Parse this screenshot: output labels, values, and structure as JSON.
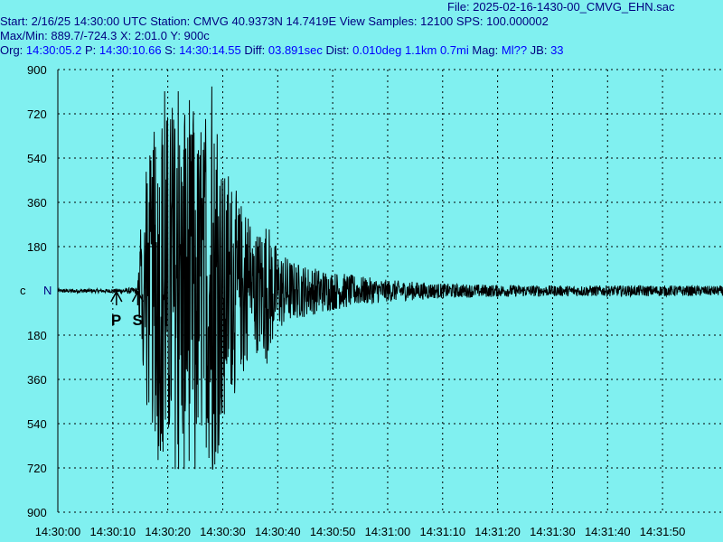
{
  "header": {
    "file": "File: 2025-02-16-1430-00_CMVG_EHN.sac",
    "line1": "Start: 2/16/25 14:30:00 UTC Station: CMVG 40.9373N 14.7419E View Samples: 12100  SPS: 100.000002",
    "line2": "Max/Min: 889.7/-724.3 X: 2:01.0 Y: 900c",
    "line3_prefix": "Org: ",
    "line3_org": "14:30:05.2",
    "line3_p_label": " P: ",
    "line3_p": "14:30:10.66",
    "line3_s_label": " S: ",
    "line3_s": "14:30:14.55",
    "line3_diff_label": " Diff: ",
    "line3_diff": "03.891sec",
    "line3_dist_label": " Dist: ",
    "line3_dist": "0.010deg 1.1km 0.7mi",
    "line3_mag_label": "  Mag: ",
    "line3_mag": "Ml??",
    "line3_jb_label": " JB: ",
    "line3_jb": "33"
  },
  "colors": {
    "background": "#80f0f0",
    "trace": "#000000",
    "grid": "#000000",
    "header_text": "#000080",
    "header_values": "#0000ff"
  },
  "chart_data": {
    "type": "line",
    "title": "",
    "xlabel": "",
    "ylabel": "",
    "y_unit_label": "c",
    "center_marker": "N",
    "ylim": [
      -900,
      900
    ],
    "y_ticks": [
      900,
      720,
      540,
      360,
      180,
      -180,
      -360,
      -540,
      -720,
      -900
    ],
    "y_tick_labels": [
      "900",
      "720",
      "540",
      "360",
      "180",
      "180",
      "360",
      "540",
      "720",
      "900"
    ],
    "x_start_seconds": 0,
    "x_end_seconds": 121,
    "x_tick_seconds": [
      0,
      10,
      20,
      30,
      40,
      50,
      60,
      70,
      80,
      90,
      100,
      110
    ],
    "x_tick_labels": [
      "14:30:00",
      "14:30:10",
      "14:30:20",
      "14:30:30",
      "14:30:40",
      "14:30:50",
      "14:31:00",
      "14:31:10",
      "14:31:20",
      "14:31:30",
      "14:31:40",
      "14:31:50"
    ],
    "grid": true,
    "picks": [
      {
        "label": "P",
        "time_seconds": 10.66
      },
      {
        "label": "S",
        "time_seconds": 14.55
      }
    ],
    "max": 889.7,
    "min": -724.3,
    "envelope": [
      [
        0,
        8
      ],
      [
        10,
        8
      ],
      [
        14.5,
        15
      ],
      [
        15,
        220
      ],
      [
        16,
        430
      ],
      [
        17,
        560
      ],
      [
        18,
        620
      ],
      [
        19,
        700
      ],
      [
        20,
        760
      ],
      [
        21,
        760
      ],
      [
        22,
        720
      ],
      [
        23,
        740
      ],
      [
        24,
        700
      ],
      [
        25,
        660
      ],
      [
        27,
        640
      ],
      [
        28,
        800
      ],
      [
        29,
        700
      ],
      [
        30,
        500
      ],
      [
        32,
        380
      ],
      [
        34,
        300
      ],
      [
        36,
        250
      ],
      [
        38,
        300
      ],
      [
        40,
        170
      ],
      [
        43,
        120
      ],
      [
        46,
        100
      ],
      [
        50,
        80
      ],
      [
        55,
        60
      ],
      [
        60,
        45
      ],
      [
        70,
        30
      ],
      [
        80,
        25
      ],
      [
        90,
        22
      ],
      [
        100,
        22
      ],
      [
        110,
        22
      ],
      [
        121,
        20
      ]
    ]
  }
}
